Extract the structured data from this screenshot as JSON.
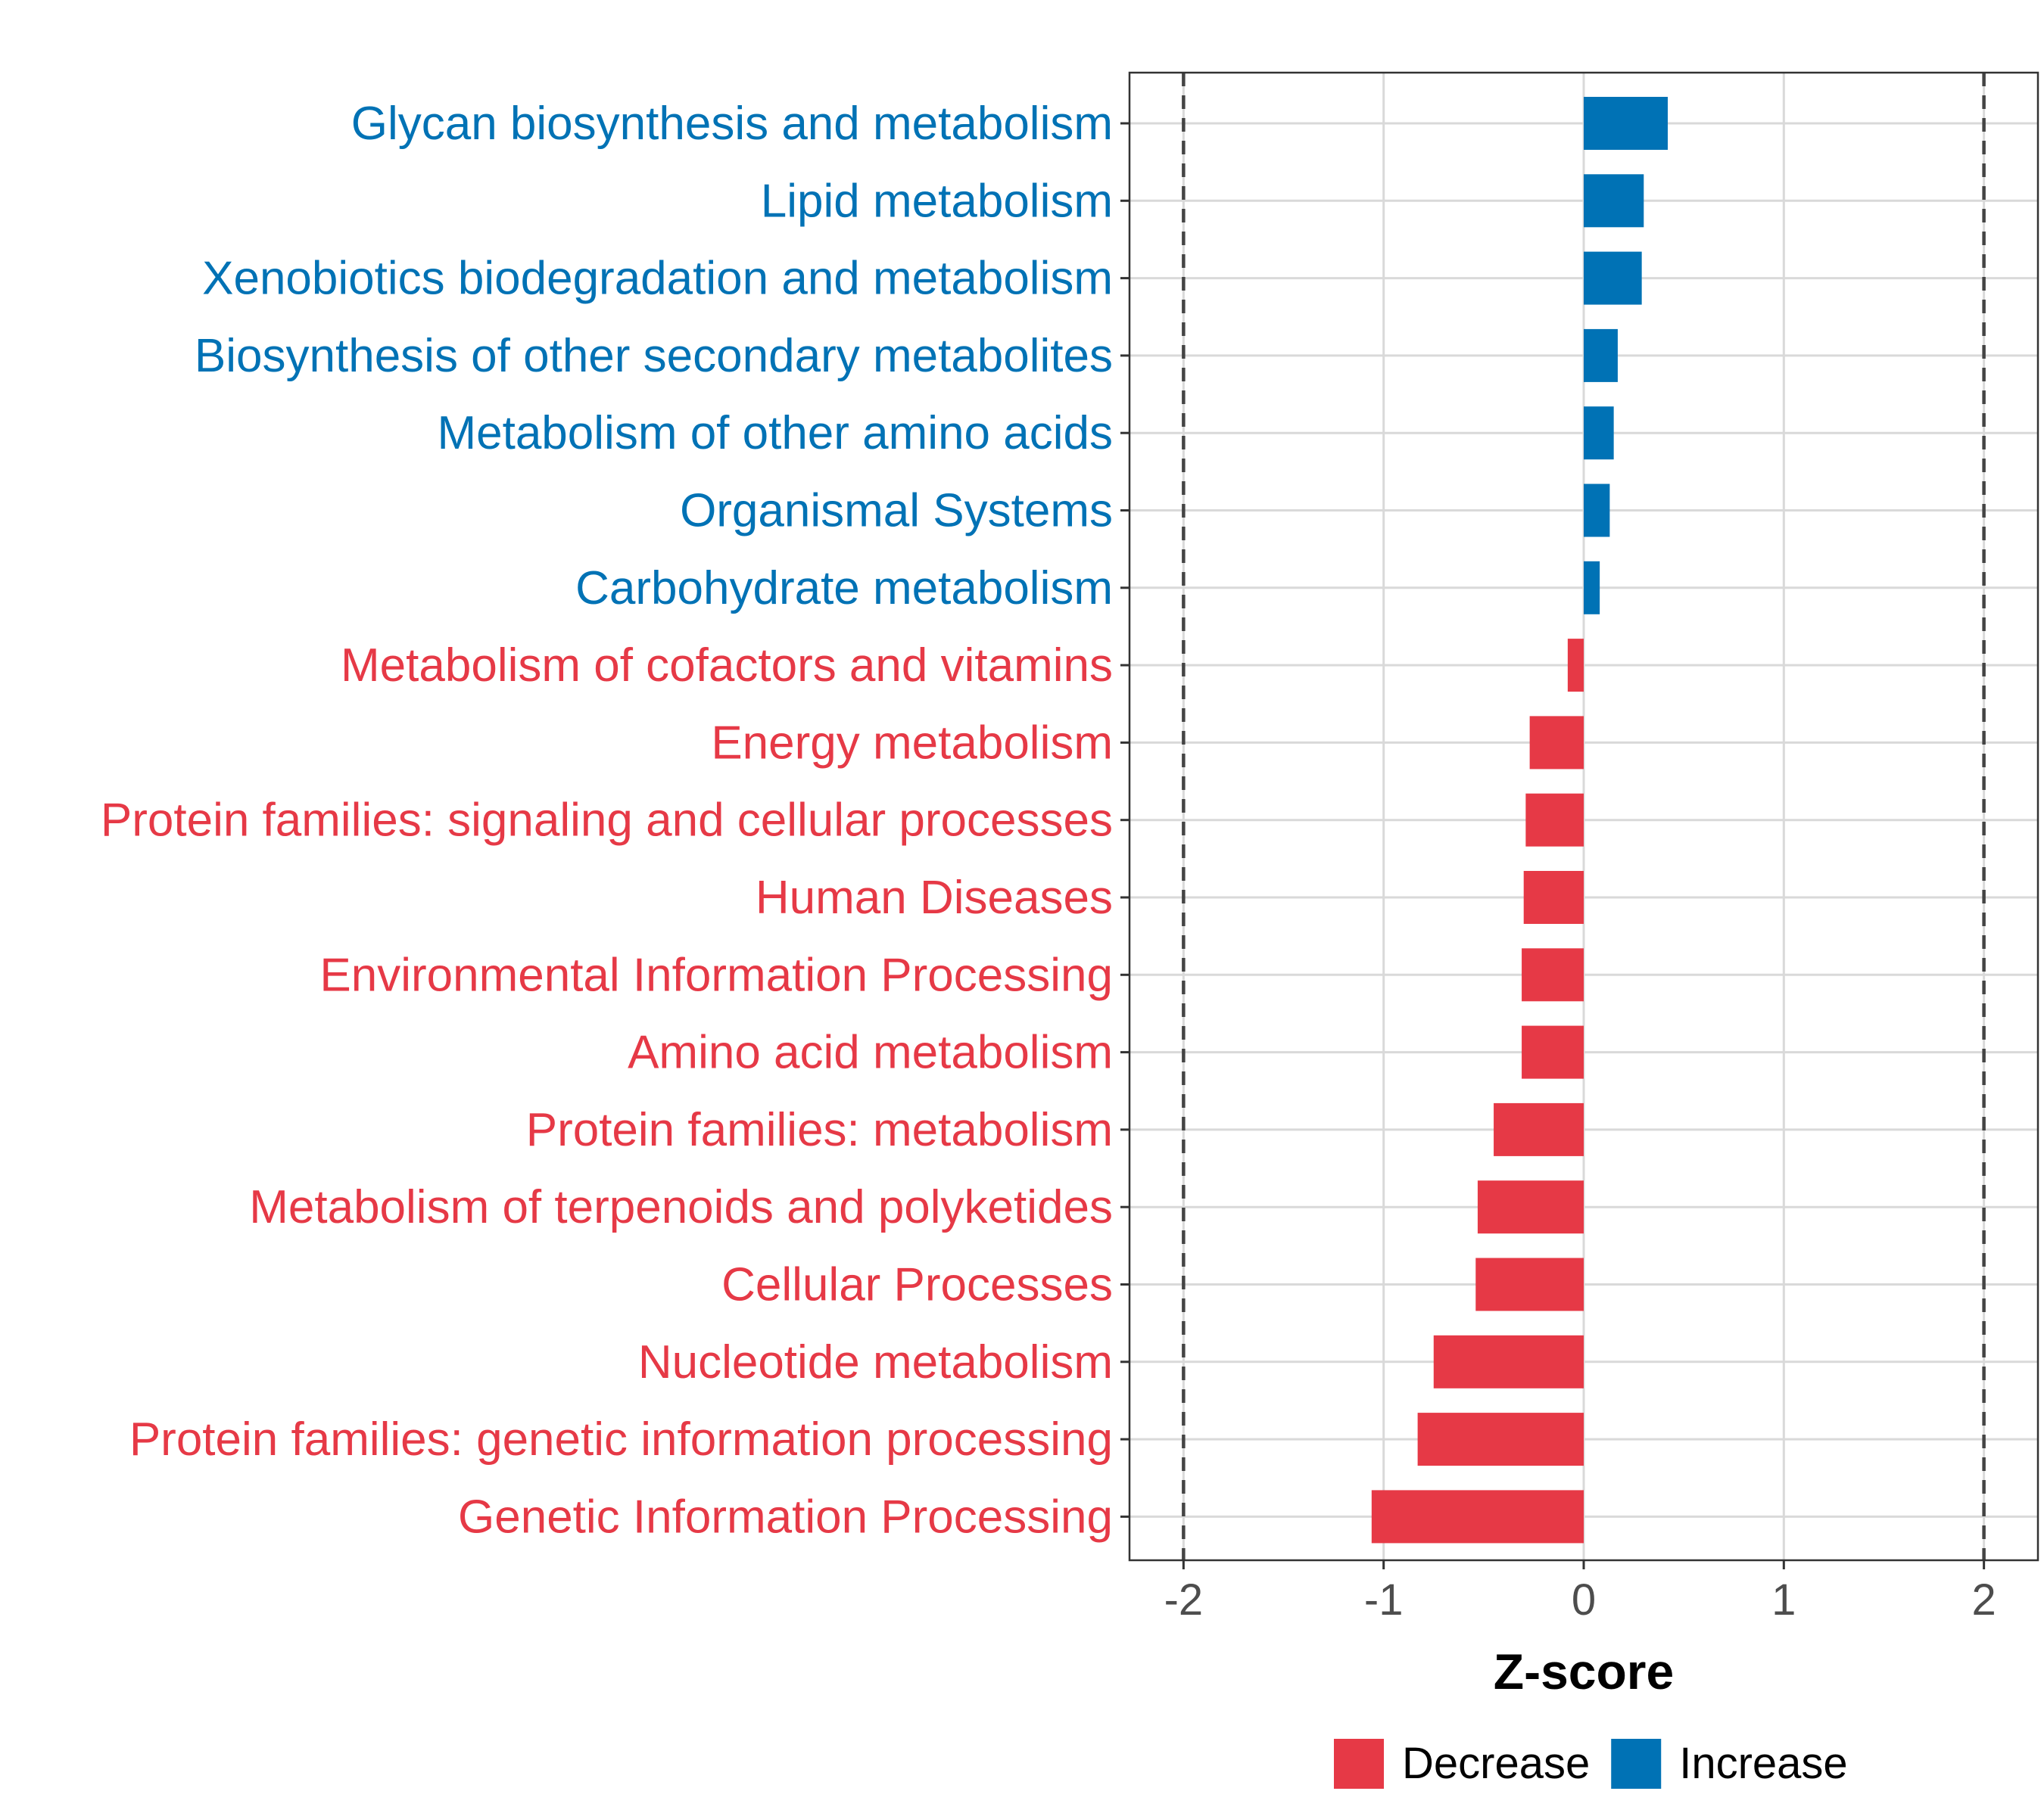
{
  "chart_data": {
    "type": "bar",
    "orientation": "horizontal",
    "xlabel": "Z-score",
    "xlim": [
      -2.27,
      2.27
    ],
    "xticks": [
      -2,
      -1,
      0,
      1,
      2
    ],
    "xtick_labels": [
      "-2",
      "-1",
      "0",
      "1",
      "2"
    ],
    "reference_lines": [
      -2,
      2
    ],
    "grid": true,
    "legend_position": "bottom",
    "colors": {
      "Decrease": "#E63946",
      "Increase": "#0072B5"
    },
    "legend": [
      {
        "label": "Decrease",
        "color": "#E63946"
      },
      {
        "label": "Increase",
        "color": "#0072B5"
      }
    ],
    "categories": [
      "Glycan biosynthesis and metabolism",
      "Lipid metabolism",
      "Xenobiotics biodegradation and metabolism",
      "Biosynthesis of other secondary metabolites",
      "Metabolism of other amino acids",
      "Organismal Systems",
      "Carbohydrate metabolism",
      "Metabolism of cofactors and vitamins",
      "Energy metabolism",
      "Protein families: signaling and cellular processes",
      "Human Diseases",
      "Environmental Information Processing",
      "Amino acid metabolism",
      "Protein families: metabolism",
      "Metabolism of terpenoids and polyketides",
      "Cellular Processes",
      "Nucleotide metabolism",
      "Protein families: genetic information processing",
      "Genetic Information Processing"
    ],
    "values": [
      0.42,
      0.3,
      0.29,
      0.17,
      0.15,
      0.13,
      0.08,
      -0.08,
      -0.27,
      -0.29,
      -0.3,
      -0.31,
      -0.31,
      -0.45,
      -0.53,
      -0.54,
      -0.75,
      -0.83,
      -1.06
    ],
    "groups": [
      "Increase",
      "Increase",
      "Increase",
      "Increase",
      "Increase",
      "Increase",
      "Increase",
      "Decrease",
      "Decrease",
      "Decrease",
      "Decrease",
      "Decrease",
      "Decrease",
      "Decrease",
      "Decrease",
      "Decrease",
      "Decrease",
      "Decrease",
      "Decrease"
    ]
  }
}
